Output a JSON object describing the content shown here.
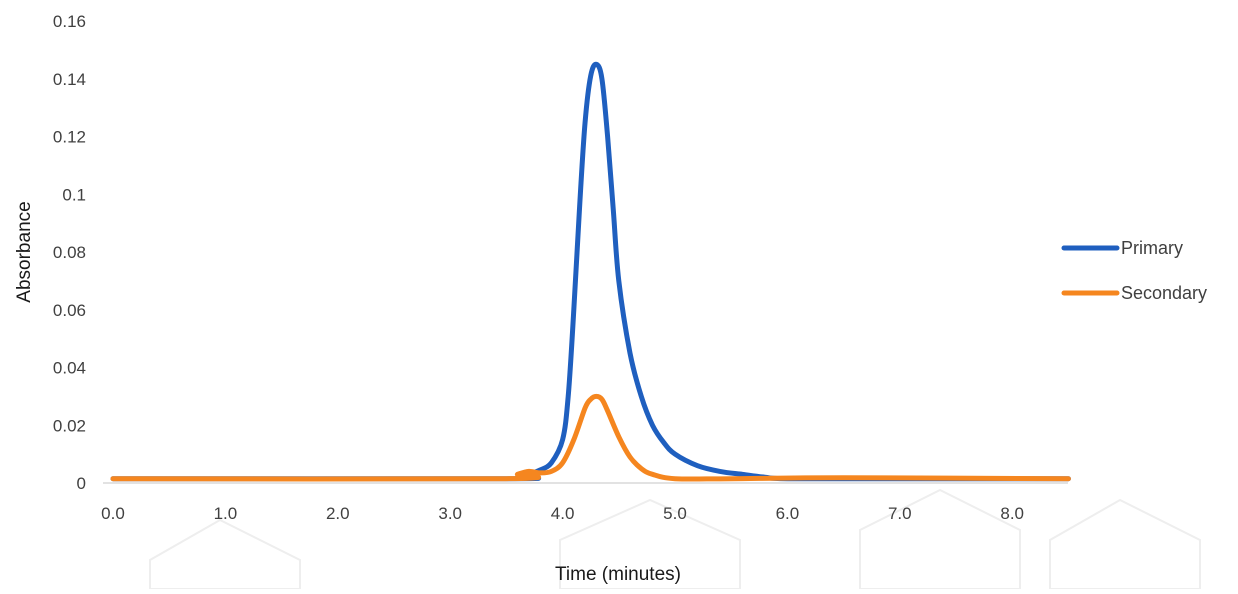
{
  "chart_data": {
    "type": "line",
    "xlabel": "Time (minutes)",
    "ylabel": "Absorbance",
    "xlim": [
      0,
      8.5
    ],
    "ylim": [
      0,
      0.16
    ],
    "x_ticks": [
      "0.0",
      "1.0",
      "2.0",
      "3.0",
      "4.0",
      "5.0",
      "6.0",
      "7.0",
      "8.0"
    ],
    "x_tick_values": [
      0,
      1,
      2,
      3,
      4,
      5,
      6,
      7,
      8
    ],
    "y_ticks": [
      "0",
      "0.02",
      "0.04",
      "0.06",
      "0.08",
      "0.1",
      "0.12",
      "0.14",
      "0.16"
    ],
    "y_tick_values": [
      0,
      0.02,
      0.04,
      0.06,
      0.08,
      0.1,
      0.12,
      0.14,
      0.16
    ],
    "grid": false,
    "legend_position": "right",
    "series": [
      {
        "name": "Primary",
        "color": "#1f5fbf",
        "x": [
          0,
          3.5,
          3.6,
          3.7,
          3.8,
          3.9,
          4.0,
          4.05,
          4.1,
          4.15,
          4.2,
          4.25,
          4.3,
          4.35,
          4.4,
          4.45,
          4.5,
          4.6,
          4.7,
          4.8,
          4.9,
          5.0,
          5.2,
          5.4,
          5.6,
          5.8,
          6.0,
          7.0,
          8.5
        ],
        "y": [
          0.0015,
          0.0015,
          0.002,
          0.003,
          0.0045,
          0.007,
          0.015,
          0.03,
          0.06,
          0.095,
          0.125,
          0.141,
          0.145,
          0.14,
          0.12,
          0.095,
          0.07,
          0.045,
          0.03,
          0.02,
          0.014,
          0.01,
          0.006,
          0.004,
          0.003,
          0.002,
          0.0015,
          0.0015,
          0.0015
        ]
      },
      {
        "name": "Secondary",
        "color": "#f5861f",
        "x": [
          0,
          3.5,
          3.6,
          3.7,
          3.8,
          3.9,
          4.0,
          4.1,
          4.2,
          4.25,
          4.3,
          4.35,
          4.4,
          4.5,
          4.6,
          4.7,
          4.8,
          5.0,
          5.5,
          6.5,
          8.5
        ],
        "y": [
          0.0015,
          0.0015,
          0.003,
          0.004,
          0.0035,
          0.004,
          0.007,
          0.015,
          0.026,
          0.029,
          0.03,
          0.029,
          0.025,
          0.016,
          0.009,
          0.005,
          0.003,
          0.0015,
          0.0015,
          0.0018,
          0.0015
        ]
      }
    ]
  }
}
